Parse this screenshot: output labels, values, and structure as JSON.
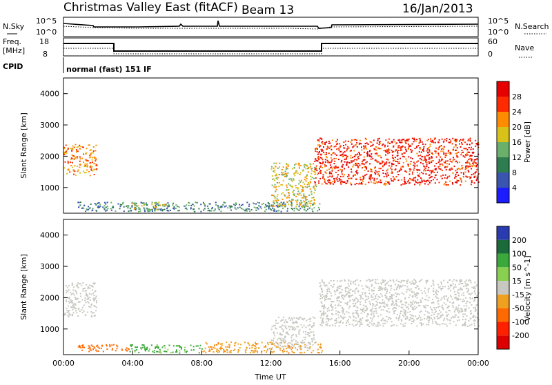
{
  "header": {
    "radar": "Christmas Valley East (fitACF)",
    "beam": "Beam 13",
    "date": "16/Jan/2013"
  },
  "top_panels": {
    "nsky_label": "N.Sky",
    "nsky_ticks": [
      "10^5",
      "10^0"
    ],
    "nsearch_label": "N.Search",
    "nsearch_ticks": [
      "10^5",
      "10^0"
    ],
    "freq_label_1": "Freq.",
    "freq_label_2": "[MHz]",
    "freq_ticks": [
      "18",
      "8"
    ],
    "nave_label": "Nave",
    "nave_ticks": [
      "60",
      "0"
    ],
    "cpid_label": "CPID",
    "cpid_value": "normal (fast) 151 IF"
  },
  "chart_data": [
    {
      "type": "heatmap",
      "name": "power",
      "ylabel": "Slant Range [km]",
      "xlabel": "",
      "xlim": [
        0,
        24
      ],
      "ylim": [
        180,
        4500
      ],
      "y_ticks": [
        "1000",
        "2000",
        "3000",
        "4000"
      ],
      "y_tick_values": [
        1000,
        2000,
        3000,
        4000
      ],
      "colorbar_label": "Power [dB]",
      "colorbar_ticks": [
        "4",
        "8",
        "12",
        "16",
        "20",
        "24",
        "28"
      ],
      "colorbar_colors": [
        "#1c1cff",
        "#3a55b0",
        "#2e7d50",
        "#6ab06a",
        "#d8c21a",
        "#ff8c00",
        "#ff2a00",
        "#e60000"
      ],
      "colorbar_range": [
        0,
        32
      ],
      "echo_regions": [
        {
          "name": "early-echo",
          "t0": 0.0,
          "t1": 1.9,
          "r0": 1400,
          "r1": 2400,
          "power": 22
        },
        {
          "name": "near-range-band",
          "t0": 0.8,
          "t1": 14.8,
          "r0": 250,
          "r1": 550,
          "power": 10
        },
        {
          "name": "near-range-burst",
          "t0": 3.8,
          "t1": 6.0,
          "r0": 300,
          "r1": 550,
          "power": 16
        },
        {
          "name": "descending-trace",
          "t0": 12.0,
          "t1": 14.6,
          "r0": 400,
          "r1": 1800,
          "power": 18
        },
        {
          "name": "evening-band",
          "t0": 14.5,
          "t1": 24.0,
          "r0": 1100,
          "r1": 2600,
          "power": 28
        }
      ]
    },
    {
      "type": "heatmap",
      "name": "velocity",
      "ylabel": "Slant Range [km]",
      "xlabel": "Time UT",
      "xlim": [
        0,
        24
      ],
      "ylim": [
        180,
        4500
      ],
      "y_ticks": [
        "1000",
        "2000",
        "3000",
        "4000"
      ],
      "y_tick_values": [
        1000,
        2000,
        3000,
        4000
      ],
      "x_ticks": [
        "00:00",
        "04:00",
        "08:00",
        "12:00",
        "16:00",
        "20:00",
        "00:00"
      ],
      "x_tick_values": [
        0,
        4,
        8,
        12,
        16,
        20,
        24
      ],
      "colorbar_label": "Velocity [m s^-1]",
      "colorbar_ticks": [
        "200",
        "100",
        "50",
        "15",
        "-15",
        "-50",
        "-100",
        "-200"
      ],
      "colorbar_colors": [
        "#2a3bb0",
        "#1a6a3a",
        "#3aa83a",
        "#8ad050",
        "#c8c8c0",
        "#f0a020",
        "#ff6a00",
        "#ff2000",
        "#dd0000"
      ],
      "echo_regions": [
        {
          "name": "early-ground-scatter",
          "t0": 0.0,
          "t1": 1.9,
          "r0": 1400,
          "r1": 2500,
          "velocity": 0
        },
        {
          "name": "near-range-orange",
          "t0": 0.8,
          "t1": 3.8,
          "r0": 280,
          "r1": 520,
          "velocity": -70
        },
        {
          "name": "near-range-green",
          "t0": 3.8,
          "t1": 8.0,
          "r0": 250,
          "r1": 520,
          "velocity": 60
        },
        {
          "name": "near-range-mixed",
          "t0": 8.0,
          "t1": 15.0,
          "r0": 250,
          "r1": 600,
          "velocity": -40
        },
        {
          "name": "descending-grey",
          "t0": 12.0,
          "t1": 14.5,
          "r0": 400,
          "r1": 1400,
          "velocity": 0
        },
        {
          "name": "evening-ground-scatter",
          "t0": 14.8,
          "t1": 24.0,
          "r0": 1100,
          "r1": 2600,
          "velocity": 0
        }
      ]
    }
  ]
}
